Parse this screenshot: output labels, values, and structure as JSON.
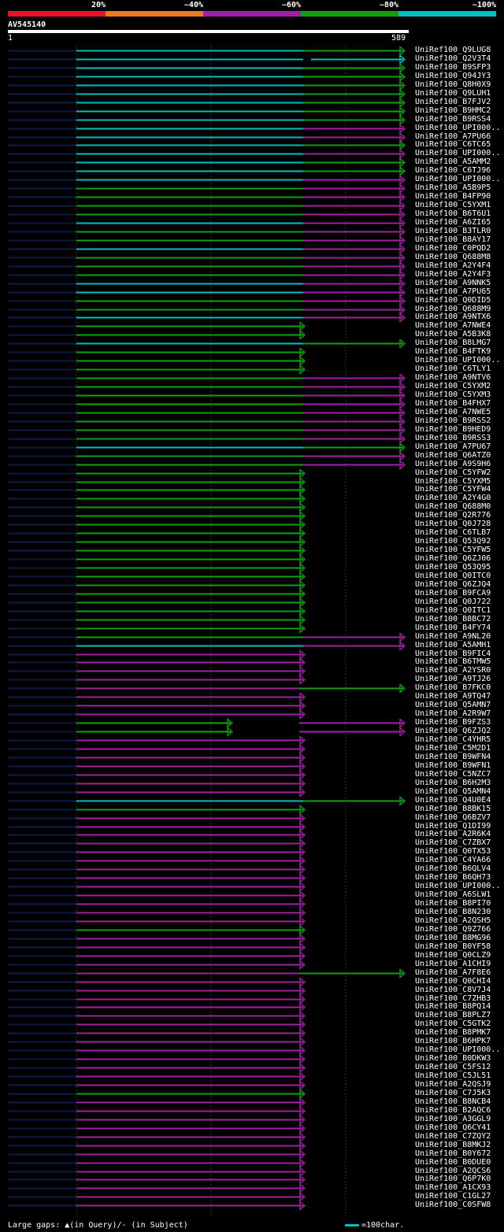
{
  "legend": {
    "labels": [
      "20%",
      "~40%",
      "~60%",
      "~80%",
      "~100%"
    ],
    "colors": [
      "#e8102a",
      "#f07820",
      "#a020a0",
      "#10a010",
      "#00c0c0"
    ]
  },
  "query": {
    "name": "AV545140",
    "start_label": "1",
    "end_label": "589"
  },
  "footer": {
    "left_text": "Large gaps: ▲(in Query)/- (in Subject)",
    "right_text": "=100char."
  },
  "hits": [
    {
      "name": "UniRef100_Q9LUG8",
      "c": "cyan-green"
    },
    {
      "name": "UniRef100_Q2V3T4",
      "c": "cyan"
    },
    {
      "name": "UniRef100_B9SFP3",
      "c": "cyan-green"
    },
    {
      "name": "UniRef100_Q94JY3",
      "c": "cyan-green"
    },
    {
      "name": "UniRef100_Q8H0X9",
      "c": "cyan-green"
    },
    {
      "name": "UniRef100_Q9LUH1",
      "c": "cyan-green"
    },
    {
      "name": "UniRef100_B7FJV2",
      "c": "cyan-green"
    },
    {
      "name": "UniRef100_B9HMC2",
      "c": "cyan-green"
    },
    {
      "name": "UniRef100_B9RSS4",
      "c": "cyan-green"
    },
    {
      "name": "UniRef100_UPI000..",
      "c": "cyan-magenta"
    },
    {
      "name": "UniRef100_A7PU66",
      "c": "cyan-magenta"
    },
    {
      "name": "UniRef100_C6TC65",
      "c": "cyan-green"
    },
    {
      "name": "UniRef100_UPI000..",
      "c": "cyan-magenta"
    },
    {
      "name": "UniRef100_A5AMM2",
      "c": "cyan-green"
    },
    {
      "name": "UniRef100_C6TJ96",
      "c": "cyan-green"
    },
    {
      "name": "UniRef100_UPI000..",
      "c": "cyan-magenta"
    },
    {
      "name": "UniRef100_A5B9P5",
      "c": "green-magenta"
    },
    {
      "name": "UniRef100_B4FP90",
      "c": "green-magenta"
    },
    {
      "name": "UniRef100_C5YXM1",
      "c": "green-magenta"
    },
    {
      "name": "UniRef100_B6T6U1",
      "c": "green-magenta"
    },
    {
      "name": "UniRef100_A6ZI65",
      "c": "cyan-magenta"
    },
    {
      "name": "UniRef100_B3TLR0",
      "c": "green-magenta"
    },
    {
      "name": "UniRef100_B8AY17",
      "c": "green-magenta"
    },
    {
      "name": "UniRef100_C0PQD2",
      "c": "cyan-magenta"
    },
    {
      "name": "UniRef100_Q688M8",
      "c": "green-magenta"
    },
    {
      "name": "UniRef100_A2Y4F4",
      "c": "green-magenta"
    },
    {
      "name": "UniRef100_A2Y4F3",
      "c": "green-magenta"
    },
    {
      "name": "UniRef100_A9NNK5",
      "c": "cyan-magenta"
    },
    {
      "name": "UniRef100_A7PU65",
      "c": "cyan-magenta"
    },
    {
      "name": "UniRef100_Q0DID5",
      "c": "green-magenta"
    },
    {
      "name": "UniRef100_Q688M9",
      "c": "green-magenta"
    },
    {
      "name": "UniRef100_A9NTX6",
      "c": "cyan-magenta"
    },
    {
      "name": "UniRef100_A7NWE4",
      "c": "green"
    },
    {
      "name": "UniRef100_A5B3K8",
      "c": "green"
    },
    {
      "name": "UniRef100_B8LMG7",
      "c": "cyan-green"
    },
    {
      "name": "UniRef100_B4FTK9",
      "c": "green"
    },
    {
      "name": "UniRef100_UPI000..",
      "c": "green"
    },
    {
      "name": "UniRef100_C6TLY1",
      "c": "green"
    },
    {
      "name": "UniRef100_A9NTV6",
      "c": "green-magenta"
    },
    {
      "name": "UniRef100_C5YXM2",
      "c": "green-magenta"
    },
    {
      "name": "UniRef100_C5YXM3",
      "c": "green-magenta"
    },
    {
      "name": "UniRef100_B4FHX7",
      "c": "green-magenta"
    },
    {
      "name": "UniRef100_A7NWE5",
      "c": "green-magenta"
    },
    {
      "name": "UniRef100_B9RSS2",
      "c": "green-magenta"
    },
    {
      "name": "UniRef100_B9HED9",
      "c": "green-magenta"
    },
    {
      "name": "UniRef100_B9RSS3",
      "c": "green-magenta"
    },
    {
      "name": "UniRef100_A7PU67",
      "c": "cyan-green"
    },
    {
      "name": "UniRef100_Q6ATZ0",
      "c": "green-magenta"
    },
    {
      "name": "UniRef100_A9S9H6",
      "c": "green-magenta"
    },
    {
      "name": "UniRef100_C5YFW2",
      "c": "green"
    },
    {
      "name": "UniRef100_C5YXM5",
      "c": "green"
    },
    {
      "name": "UniRef100_C5YFW4",
      "c": "green"
    },
    {
      "name": "UniRef100_A2Y4G0",
      "c": "green"
    },
    {
      "name": "UniRef100_Q688M0",
      "c": "green"
    },
    {
      "name": "UniRef100_Q2R776",
      "c": "green"
    },
    {
      "name": "UniRef100_Q0J728",
      "c": "green"
    },
    {
      "name": "UniRef100_C6TLB7",
      "c": "green"
    },
    {
      "name": "UniRef100_Q53Q92",
      "c": "green"
    },
    {
      "name": "UniRef100_C5YFW5",
      "c": "green"
    },
    {
      "name": "UniRef100_Q6ZJ06",
      "c": "green"
    },
    {
      "name": "UniRef100_Q53Q95",
      "c": "green"
    },
    {
      "name": "UniRef100_Q0ITC0",
      "c": "green"
    },
    {
      "name": "UniRef100_Q6ZJQ4",
      "c": "green"
    },
    {
      "name": "UniRef100_B9FCA9",
      "c": "green"
    },
    {
      "name": "UniRef100_Q0J722",
      "c": "green"
    },
    {
      "name": "UniRef100_Q0ITC1",
      "c": "green"
    },
    {
      "name": "UniRef100_B8BC72",
      "c": "green"
    },
    {
      "name": "UniRef100_B4FY74",
      "c": "green"
    },
    {
      "name": "UniRef100_A9NL20",
      "c": "green-magenta"
    },
    {
      "name": "UniRef100_A5AMH1",
      "c": "cyan-magenta"
    },
    {
      "name": "UniRef100_B9FIC4",
      "c": "magenta"
    },
    {
      "name": "UniRef100_B6TMW5",
      "c": "magenta"
    },
    {
      "name": "UniRef100_A2YSR0",
      "c": "magenta"
    },
    {
      "name": "UniRef100_A9TJ26",
      "c": "magenta"
    },
    {
      "name": "UniRef100_B7FKC0",
      "c": "magenta-green"
    },
    {
      "name": "UniRef100_A9TQ47",
      "c": "magenta"
    },
    {
      "name": "UniRef100_Q5AMN7",
      "c": "magenta"
    },
    {
      "name": "UniRef100_A2R9W7",
      "c": "magenta"
    },
    {
      "name": "UniRef100_B9FZS3",
      "c": "green2-magenta"
    },
    {
      "name": "UniRef100_Q6ZJQ2",
      "c": "green2-magenta"
    },
    {
      "name": "UniRef100_C4YHR5",
      "c": "magenta"
    },
    {
      "name": "UniRef100_C5M2D1",
      "c": "magenta"
    },
    {
      "name": "UniRef100_B9WFN4",
      "c": "magenta"
    },
    {
      "name": "UniRef100_B9WFN1",
      "c": "magenta"
    },
    {
      "name": "UniRef100_C5NZC7",
      "c": "magenta"
    },
    {
      "name": "UniRef100_B6H2M3",
      "c": "magenta"
    },
    {
      "name": "UniRef100_Q5AMN4",
      "c": "magenta"
    },
    {
      "name": "UniRef100_Q4U0E4",
      "c": "cyan-green"
    },
    {
      "name": "UniRef100_B8BK15",
      "c": "green"
    },
    {
      "name": "UniRef100_Q6BZV7",
      "c": "magenta"
    },
    {
      "name": "UniRef100_Q1DI99",
      "c": "magenta"
    },
    {
      "name": "UniRef100_A2R6K4",
      "c": "magenta"
    },
    {
      "name": "UniRef100_C7ZBX7",
      "c": "magenta"
    },
    {
      "name": "UniRef100_Q0TX53",
      "c": "magenta"
    },
    {
      "name": "UniRef100_C4YA66",
      "c": "magenta"
    },
    {
      "name": "UniRef100_B6QLV4",
      "c": "magenta"
    },
    {
      "name": "UniRef100_B6QH73",
      "c": "magenta"
    },
    {
      "name": "UniRef100_UPI000..",
      "c": "magenta"
    },
    {
      "name": "UniRef100_A6SLW1",
      "c": "magenta"
    },
    {
      "name": "UniRef100_B8PI70",
      "c": "magenta"
    },
    {
      "name": "UniRef100_B8N230",
      "c": "magenta"
    },
    {
      "name": "UniRef100_A2QSH5",
      "c": "magenta"
    },
    {
      "name": "UniRef100_Q9Z766",
      "c": "green"
    },
    {
      "name": "UniRef100_B8MG96",
      "c": "magenta"
    },
    {
      "name": "UniRef100_B0YF58",
      "c": "magenta"
    },
    {
      "name": "UniRef100_Q0CLZ9",
      "c": "magenta"
    },
    {
      "name": "UniRef100_A1CHI9",
      "c": "magenta"
    },
    {
      "name": "UniRef100_A7F8E6",
      "c": "magenta-green"
    },
    {
      "name": "UniRef100_Q0CHI4",
      "c": "magenta"
    },
    {
      "name": "UniRef100_C8V7J4",
      "c": "magenta"
    },
    {
      "name": "UniRef100_C7ZHB3",
      "c": "magenta"
    },
    {
      "name": "UniRef100_B8PQ14",
      "c": "magenta"
    },
    {
      "name": "UniRef100_B8PLZ7",
      "c": "magenta"
    },
    {
      "name": "UniRef100_C5GTK2",
      "c": "magenta"
    },
    {
      "name": "UniRef100_B8PMK7",
      "c": "magenta"
    },
    {
      "name": "UniRef100_B6HPK7",
      "c": "magenta"
    },
    {
      "name": "UniRef100_UPI000..",
      "c": "magenta"
    },
    {
      "name": "UniRef100_B0DKW3",
      "c": "magenta"
    },
    {
      "name": "UniRef100_C5FS12",
      "c": "magenta"
    },
    {
      "name": "UniRef100_C5JL51",
      "c": "magenta"
    },
    {
      "name": "UniRef100_A2QSJ9",
      "c": "magenta"
    },
    {
      "name": "UniRef100_C7J5K3",
      "c": "green"
    },
    {
      "name": "UniRef100_B8NCB4",
      "c": "magenta"
    },
    {
      "name": "UniRef100_B2AQC6",
      "c": "magenta"
    },
    {
      "name": "UniRef100_A3GGL9",
      "c": "magenta"
    },
    {
      "name": "UniRef100_Q6CY41",
      "c": "magenta"
    },
    {
      "name": "UniRef100_C7ZQY2",
      "c": "magenta"
    },
    {
      "name": "UniRef100_B8MKJ2",
      "c": "magenta"
    },
    {
      "name": "UniRef100_B0Y672",
      "c": "magenta"
    },
    {
      "name": "UniRef100_B0DUE0",
      "c": "magenta"
    },
    {
      "name": "UniRef100_A2QCS6",
      "c": "magenta"
    },
    {
      "name": "UniRef100_Q6P7K0",
      "c": "magenta"
    },
    {
      "name": "UniRef100_A1CX93",
      "c": "magenta"
    },
    {
      "name": "UniRef100_C1GL27",
      "c": "magenta"
    },
    {
      "name": "UniRef100_C0SFW8",
      "c": "magenta"
    }
  ]
}
